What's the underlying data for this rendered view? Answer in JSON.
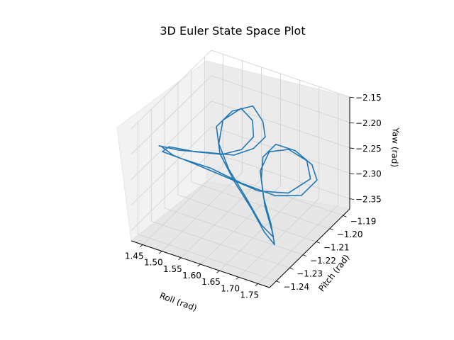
{
  "chart_data": {
    "type": "line",
    "projection": "3d",
    "title": "3D Euler State Space Plot",
    "xlabel": "Roll (rad)",
    "ylabel": "Pitch (rad)",
    "zlabel": "Yaw (rad)",
    "xlim": [
      1.42,
      1.78
    ],
    "ylim": [
      -1.245,
      -1.185
    ],
    "zlim": [
      -2.37,
      -2.15
    ],
    "xticks": [
      "1.45",
      "1.50",
      "1.55",
      "1.60",
      "1.65",
      "1.70",
      "1.75"
    ],
    "yticks": [
      "-1.24",
      "-1.23",
      "-1.22",
      "-1.21",
      "-1.20",
      "-1.19"
    ],
    "zticks": [
      "-2.35",
      "-2.30",
      "-2.25",
      "-2.20",
      "-2.15"
    ],
    "grid": true,
    "line_color": "#1f77b4",
    "series": [
      {
        "values_note": "approximate trajectory in (roll, pitch, yaw)",
        "points": [
          [
            1.46,
            -1.236,
            -2.196
          ],
          [
            1.5,
            -1.232,
            -2.205
          ],
          [
            1.55,
            -1.226,
            -2.212
          ],
          [
            1.6,
            -1.22,
            -2.22
          ],
          [
            1.63,
            -1.214,
            -2.215
          ],
          [
            1.64,
            -1.208,
            -2.205
          ],
          [
            1.62,
            -1.204,
            -2.19
          ],
          [
            1.58,
            -1.2,
            -2.18
          ],
          [
            1.54,
            -1.204,
            -2.19
          ],
          [
            1.52,
            -1.21,
            -2.21
          ],
          [
            1.55,
            -1.216,
            -2.24
          ],
          [
            1.6,
            -1.22,
            -2.27
          ],
          [
            1.66,
            -1.224,
            -2.3
          ],
          [
            1.7,
            -1.226,
            -2.33
          ],
          [
            1.72,
            -1.224,
            -2.355
          ],
          [
            1.7,
            -1.22,
            -2.345
          ],
          [
            1.66,
            -1.214,
            -2.32
          ],
          [
            1.63,
            -1.208,
            -2.29
          ],
          [
            1.62,
            -1.204,
            -2.26
          ],
          [
            1.64,
            -1.2,
            -2.24
          ],
          [
            1.68,
            -1.197,
            -2.25
          ],
          [
            1.72,
            -1.196,
            -2.27
          ],
          [
            1.74,
            -1.198,
            -2.29
          ],
          [
            1.72,
            -1.204,
            -2.31
          ],
          [
            1.68,
            -1.212,
            -2.3
          ],
          [
            1.62,
            -1.22,
            -2.27
          ],
          [
            1.56,
            -1.226,
            -2.24
          ],
          [
            1.5,
            -1.232,
            -2.22
          ],
          [
            1.47,
            -1.236,
            -2.205
          ],
          [
            1.48,
            -1.234,
            -2.198
          ],
          [
            1.53,
            -1.229,
            -2.208
          ],
          [
            1.58,
            -1.223,
            -2.216
          ],
          [
            1.61,
            -1.217,
            -2.214
          ],
          [
            1.62,
            -1.211,
            -2.202
          ],
          [
            1.6,
            -1.206,
            -2.188
          ],
          [
            1.56,
            -1.203,
            -2.182
          ],
          [
            1.53,
            -1.208,
            -2.2
          ],
          [
            1.54,
            -1.214,
            -2.228
          ],
          [
            1.58,
            -1.218,
            -2.258
          ],
          [
            1.64,
            -1.222,
            -2.29
          ],
          [
            1.69,
            -1.225,
            -2.322
          ],
          [
            1.71,
            -1.222,
            -2.348
          ],
          [
            1.69,
            -1.218,
            -2.338
          ],
          [
            1.65,
            -1.212,
            -2.312
          ],
          [
            1.62,
            -1.206,
            -2.282
          ],
          [
            1.63,
            -1.202,
            -2.252
          ],
          [
            1.67,
            -1.199,
            -2.245
          ],
          [
            1.71,
            -1.197,
            -2.262
          ],
          [
            1.73,
            -1.2,
            -2.285
          ],
          [
            1.7,
            -1.208,
            -2.3
          ],
          [
            1.65,
            -1.216,
            -2.288
          ],
          [
            1.59,
            -1.223,
            -2.258
          ],
          [
            1.53,
            -1.229,
            -2.232
          ],
          [
            1.49,
            -1.234,
            -2.212
          ],
          [
            1.47,
            -1.237,
            -2.192
          ]
        ]
      }
    ]
  }
}
